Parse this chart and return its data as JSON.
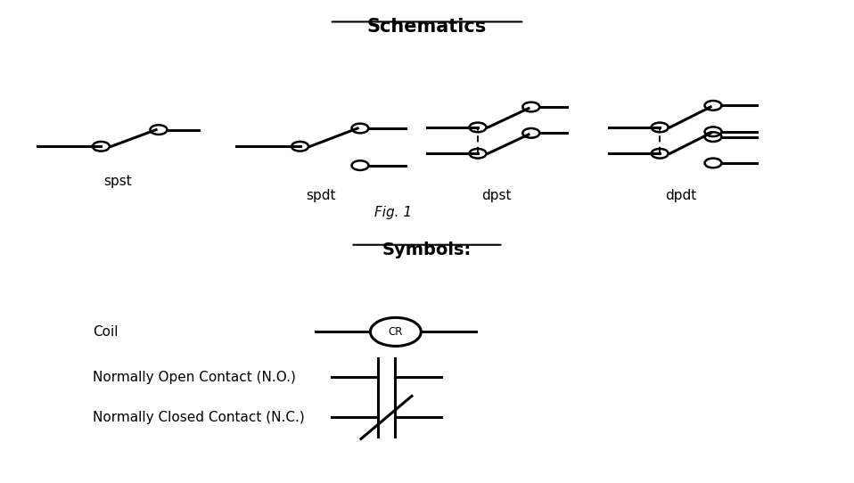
{
  "title": "Schematics",
  "fig1_label": "Fig. 1",
  "symbols_label": "Symbols:",
  "background_color": "#ffffff",
  "line_color": "#000000",
  "labels": {
    "spst": "spst",
    "spdt": "spdt",
    "dpst": "dpst",
    "dpdt": "dpdt"
  },
  "symbol_labels": {
    "coil": "Coil",
    "no": "Normally Open Contact (N.O.)",
    "nc": "Normally Closed Contact (N.C.)"
  }
}
